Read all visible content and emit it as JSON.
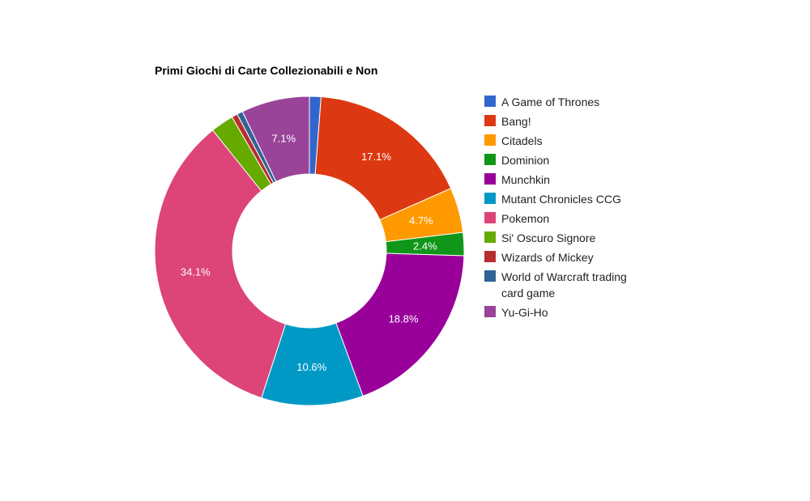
{
  "chart_data": {
    "type": "pie",
    "donut": true,
    "title": "Primi Giochi di Carte Collezionabili e Non",
    "legend_position": "right",
    "slices": [
      {
        "label": "A Game of Thrones",
        "value": 1.2,
        "color": "#3366cc",
        "display": ""
      },
      {
        "label": "Bang!",
        "value": 17.1,
        "color": "#dc3912",
        "display": "17.1%"
      },
      {
        "label": "Citadels",
        "value": 4.7,
        "color": "#ff9900",
        "display": "4.7%"
      },
      {
        "label": "Dominion",
        "value": 2.4,
        "color": "#109618",
        "display": "2.4%"
      },
      {
        "label": "Munchkin",
        "value": 18.8,
        "color": "#990099",
        "display": "18.8%"
      },
      {
        "label": "Mutant Chronicles CCG",
        "value": 10.6,
        "color": "#0099c6",
        "display": "10.6%"
      },
      {
        "label": "Pokemon",
        "value": 34.1,
        "color": "#dd4477",
        "display": "34.1%"
      },
      {
        "label": "Si' Oscuro Signore",
        "value": 2.4,
        "color": "#66aa00",
        "display": ""
      },
      {
        "label": "Wizards of Mickey",
        "value": 0.6,
        "color": "#b82e2e",
        "display": ""
      },
      {
        "label": "World of Warcraft trading card game",
        "value": 0.6,
        "color": "#316395",
        "display": ""
      },
      {
        "label": "Yu-Gi-Ho",
        "value": 7.1,
        "color": "#994499",
        "display": "7.1%"
      }
    ]
  }
}
